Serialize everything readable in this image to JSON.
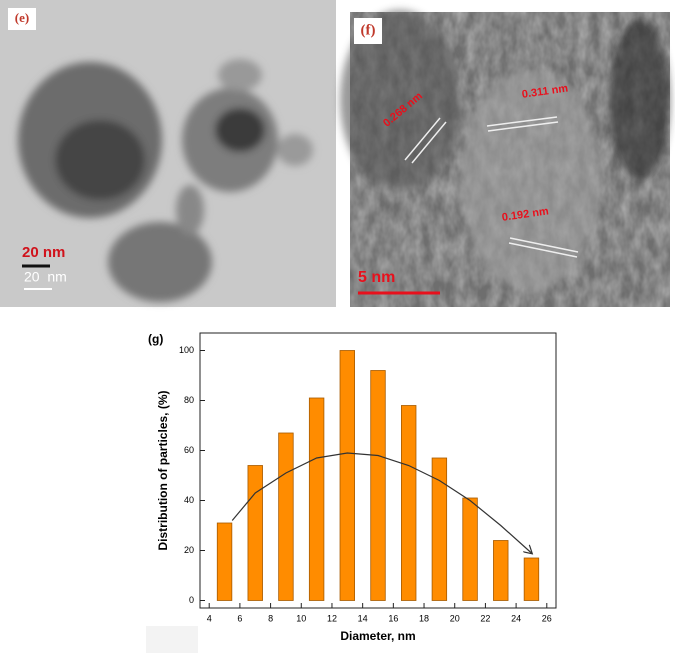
{
  "panels": [
    {
      "label": "(e)",
      "scale_labels": [
        "20 nm",
        "20  nm"
      ]
    },
    {
      "label": "(f)",
      "scale_labels": [
        "5 nm"
      ],
      "annotations": [
        "0.268 nm",
        "0.311 nm",
        "0.192 nm"
      ]
    }
  ],
  "chart_data": {
    "type": "bar",
    "title": "(g)",
    "x_label": "Diameter, nm",
    "y_label": "Distribution of particles, (%)",
    "x": [
      5,
      7,
      9,
      11,
      13,
      15,
      17,
      19,
      21,
      23,
      25
    ],
    "values": [
      31,
      54,
      67,
      81,
      100,
      92,
      78,
      57,
      41,
      24,
      17
    ],
    "color": "#ff8c00",
    "xlim": [
      3.4,
      26.6
    ],
    "xticks": [
      4,
      6,
      8,
      10,
      12,
      14,
      16,
      18,
      20,
      22,
      24,
      26
    ],
    "ylim": [
      -3,
      107
    ],
    "yticks": [
      0,
      20,
      40,
      60,
      80,
      100
    ],
    "fit": {
      "x": [
        5.5,
        7,
        9,
        11,
        13,
        15,
        17,
        19,
        21,
        23,
        25
      ],
      "values": [
        32,
        43,
        51,
        57,
        59,
        58,
        54,
        48,
        40,
        30,
        19
      ],
      "color": "#333333"
    }
  }
}
